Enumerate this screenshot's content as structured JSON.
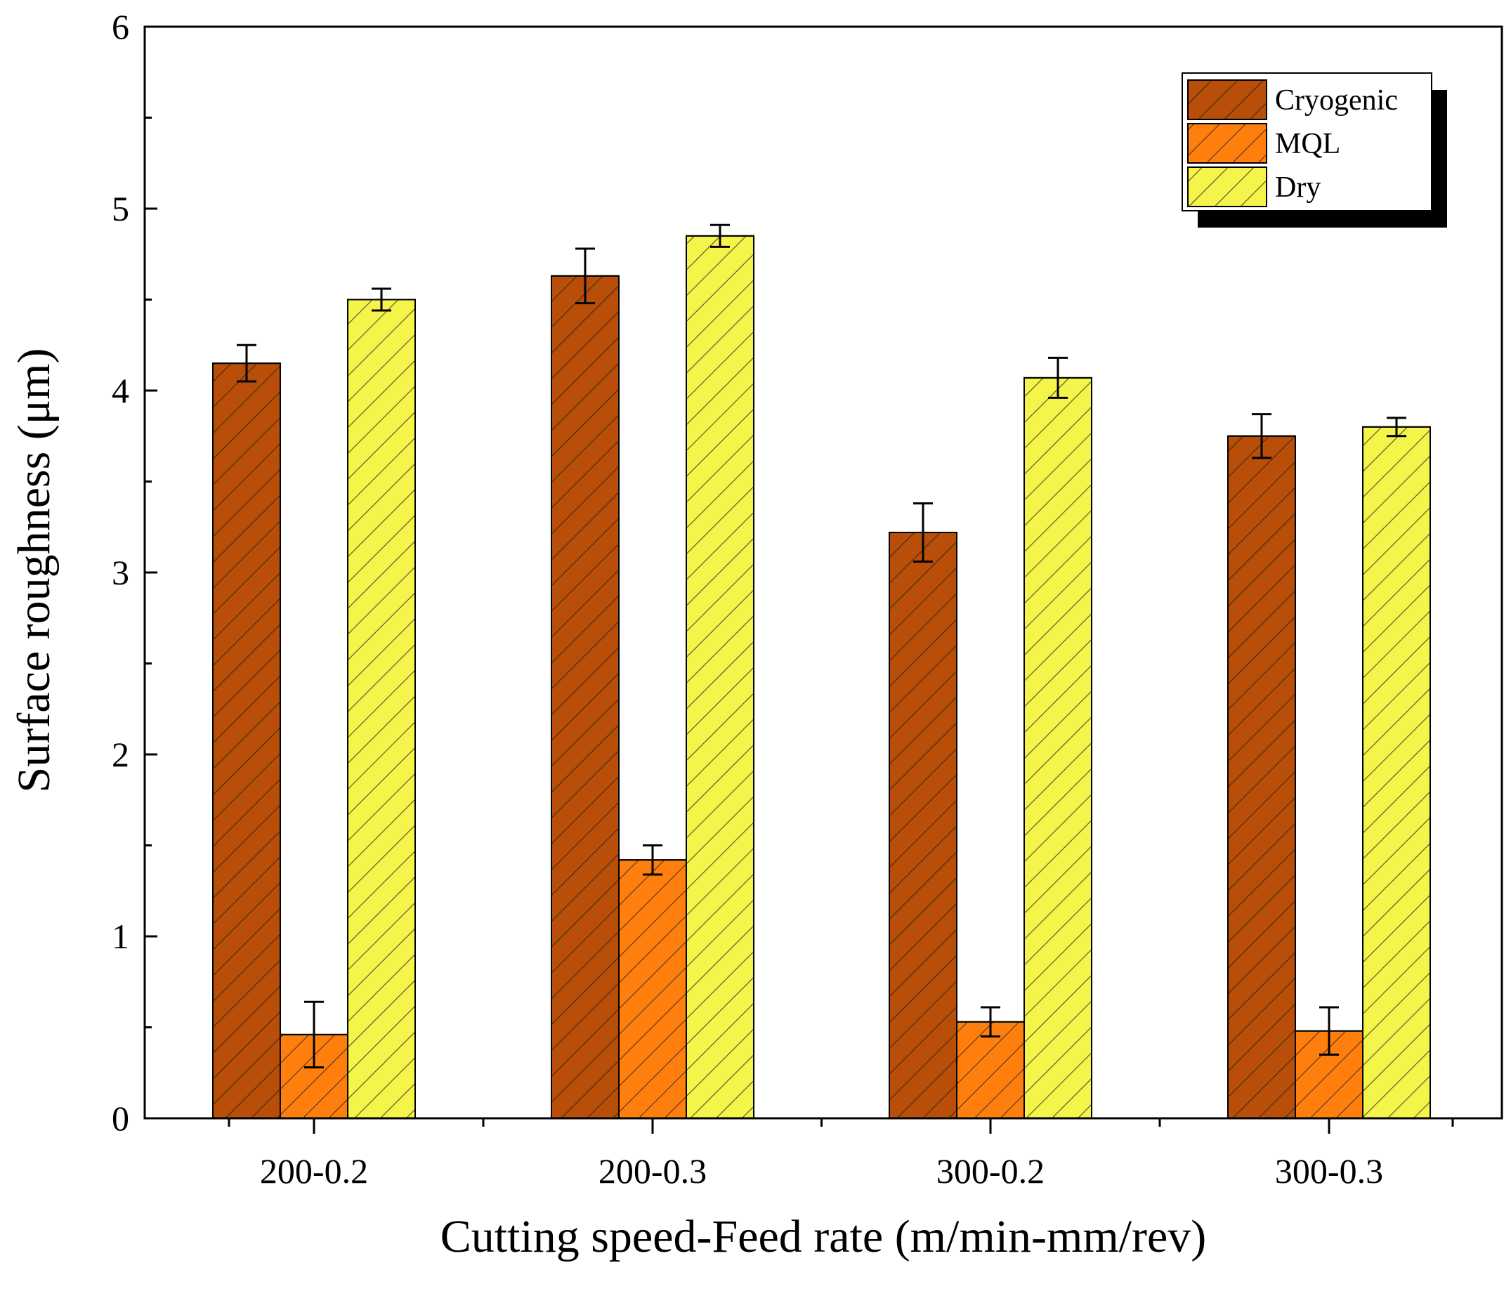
{
  "chart_data": {
    "type": "bar",
    "title": "",
    "xlabel": "Cutting speed-Feed rate (m/min-mm/rev)",
    "ylabel": "Surface roughness (μm)",
    "ylim": [
      0,
      6
    ],
    "yticks": [
      "0",
      "1",
      "2",
      "3",
      "4",
      "5",
      "6"
    ],
    "categories": [
      "200-0.2",
      "200-0.3",
      "300-0.2",
      "300-0.3"
    ],
    "series": [
      {
        "name": "Cryogenic",
        "color": "#b84e07",
        "values": [
          4.15,
          4.63,
          3.22,
          3.75
        ],
        "errors": [
          0.1,
          0.15,
          0.16,
          0.12
        ]
      },
      {
        "name": "MQL",
        "color": "#ff7f0e",
        "values": [
          0.46,
          1.42,
          0.53,
          0.48
        ],
        "errors": [
          0.18,
          0.08,
          0.08,
          0.13
        ]
      },
      {
        "name": "Dry",
        "color": "#f4f44a",
        "values": [
          4.5,
          4.85,
          4.07,
          3.8
        ],
        "errors": [
          0.06,
          0.06,
          0.11,
          0.05
        ]
      }
    ],
    "legend_position": "top-right",
    "bar_pattern": "diagonal-hatch"
  }
}
